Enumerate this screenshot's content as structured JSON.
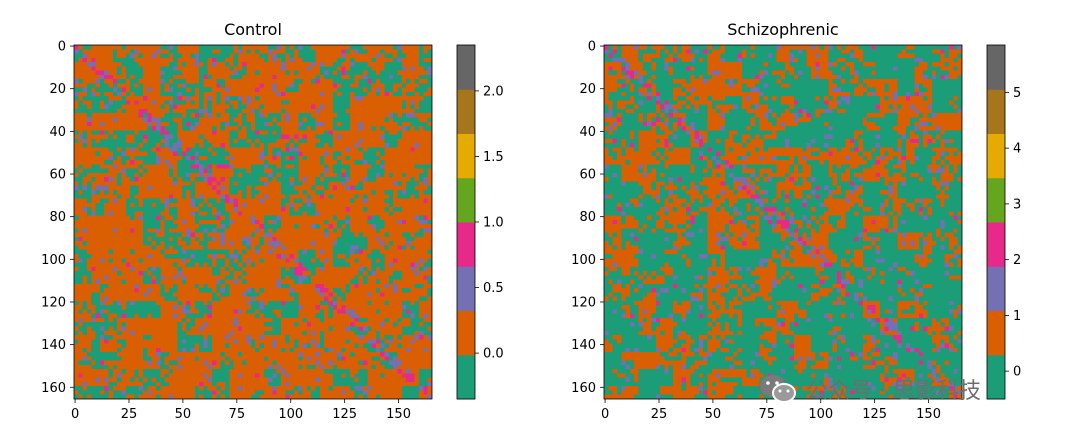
{
  "chart_data": [
    {
      "type": "heatmap",
      "title": "Control",
      "xlabel": "",
      "ylabel": "",
      "matrix_size": 166,
      "x_ticks": [
        0,
        25,
        50,
        75,
        100,
        125,
        150
      ],
      "y_ticks": [
        0,
        20,
        40,
        60,
        80,
        100,
        120,
        140,
        160
      ],
      "y_axis_inverted": true,
      "colormap": "Dark2",
      "colormap_colors": [
        "#1b9e77",
        "#d95f02",
        "#7570b3",
        "#e7298a",
        "#66a61e",
        "#e6ab02",
        "#a6761d",
        "#666666"
      ],
      "colorbar": {
        "min": -0.35,
        "max": 2.35,
        "ticks": [
          0.0,
          0.5,
          1.0,
          1.5,
          2.0
        ],
        "tick_labels": [
          "0.0",
          "0.5",
          "1.0",
          "1.5",
          "2.0"
        ]
      },
      "pattern": {
        "seed": 17,
        "base_index": 1,
        "secondary_index": 0,
        "secondary_threshold": 0.4,
        "accent_threshold": 0.2
      }
    },
    {
      "type": "heatmap",
      "title": "Schizophrenic",
      "xlabel": "",
      "ylabel": "",
      "matrix_size": 166,
      "x_ticks": [
        0,
        25,
        50,
        75,
        100,
        125,
        150
      ],
      "y_ticks": [
        0,
        20,
        40,
        60,
        80,
        100,
        120,
        140,
        160
      ],
      "y_axis_inverted": true,
      "colormap": "Dark2",
      "colormap_colors": [
        "#1b9e77",
        "#d95f02",
        "#7570b3",
        "#e7298a",
        "#66a61e",
        "#e6ab02",
        "#a6761d",
        "#666666"
      ],
      "colorbar": {
        "min": -0.5,
        "max": 5.85,
        "ticks": [
          0,
          1,
          2,
          3,
          4,
          5
        ],
        "tick_labels": [
          "0",
          "1",
          "2",
          "3",
          "4",
          "5"
        ]
      },
      "pattern": {
        "seed": 29,
        "base_index": 1,
        "secondary_index": 0,
        "secondary_threshold": 0.55,
        "accent_threshold": 0.18
      }
    }
  ],
  "watermark": {
    "text": "公众号 · 思影科技",
    "icon": "wechat-icon"
  }
}
